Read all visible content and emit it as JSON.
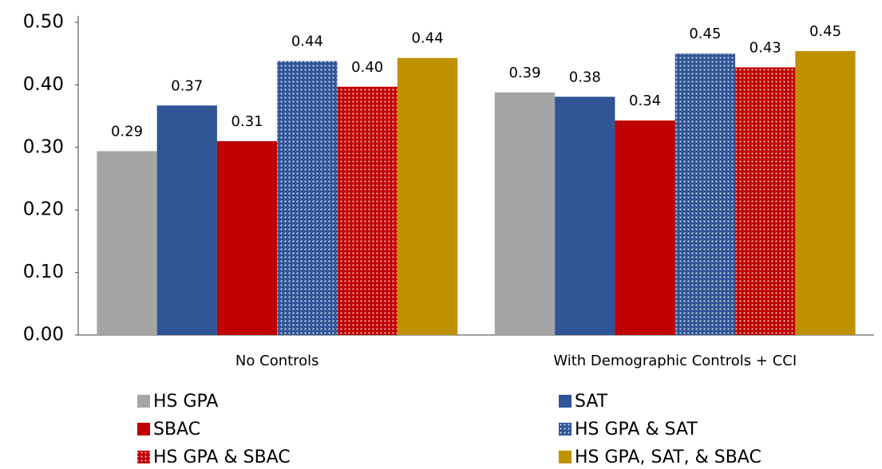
{
  "chart_data": {
    "type": "bar",
    "categories": [
      "No Controls",
      "With Demographic Controls + CCI"
    ],
    "series": [
      {
        "name": "HS GPA",
        "color": "#a5a5a5",
        "values": [
          0.294,
          0.388
        ],
        "value_labels": [
          "0.29",
          "0.39"
        ]
      },
      {
        "name": "SAT",
        "color": "#2f5597",
        "values": [
          0.367,
          0.381
        ],
        "value_labels": [
          "0.37",
          "0.38"
        ]
      },
      {
        "name": "SBAC",
        "color": "#c00000",
        "values": [
          0.31,
          0.343
        ],
        "value_labels": [
          "0.31",
          "0.34"
        ]
      },
      {
        "name": "HS GPA & SAT",
        "color": "#2f5597",
        "pattern": "dotted",
        "values": [
          0.438,
          0.45
        ],
        "value_labels": [
          "0.44",
          "0.45"
        ]
      },
      {
        "name": "HS GPA & SBAC",
        "color": "#c00000",
        "pattern": "dotted",
        "values": [
          0.397,
          0.428
        ],
        "value_labels": [
          "0.40",
          "0.43"
        ]
      },
      {
        "name": "HS GPA, SAT, & SBAC",
        "color": "#bf9000",
        "values": [
          0.443,
          0.454
        ],
        "value_labels": [
          "0.44",
          "0.45"
        ]
      }
    ],
    "ylim": [
      0,
      0.5
    ],
    "yticks": [
      {
        "value": 0,
        "label": "0.00"
      },
      {
        "value": 0.1,
        "label": "0.10"
      },
      {
        "value": 0.2,
        "label": "0.20"
      },
      {
        "value": 0.3,
        "label": "0.30"
      },
      {
        "value": 0.4,
        "label": "0.40"
      },
      {
        "value": 0.5,
        "label": "0.50"
      }
    ],
    "grid": false,
    "legend": "bottom"
  }
}
